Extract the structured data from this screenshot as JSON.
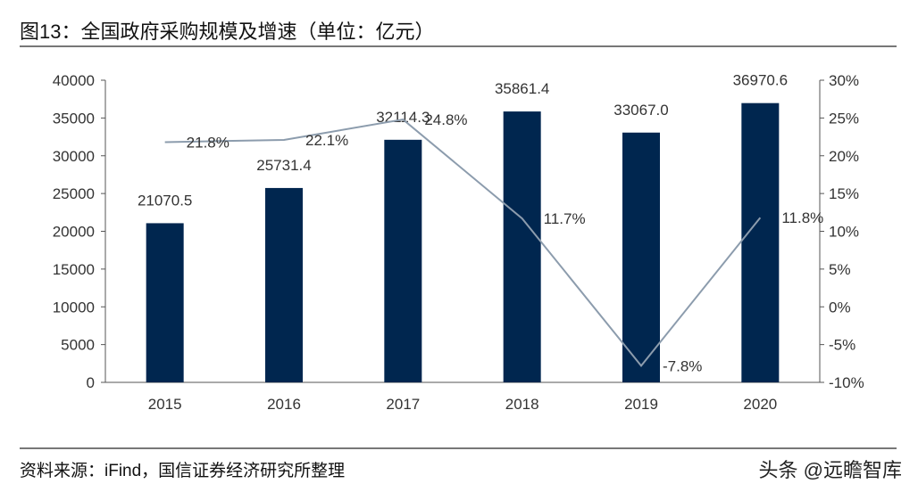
{
  "title": "图13：全国政府采购规模及增速（单位：亿元）",
  "source": "资料来源：iFind，国信证券经济研究所整理",
  "watermark": "头条 @远瞻智库",
  "chart_data": {
    "type": "bar+line",
    "categories": [
      "2015",
      "2016",
      "2017",
      "2018",
      "2019",
      "2020"
    ],
    "series": [
      {
        "type": "bar",
        "axis": "left",
        "color": "#00264f",
        "values": [
          21070.5,
          25731.4,
          32114.3,
          35861.4,
          33067.0,
          36970.6
        ],
        "labels": [
          "21070.5",
          "25731.4",
          "32114.3",
          "35861.4",
          "33067.0",
          "36970.6"
        ]
      },
      {
        "type": "line",
        "axis": "right",
        "color": "#8c9cad",
        "values": [
          21.8,
          22.1,
          24.8,
          11.7,
          -7.8,
          11.8
        ],
        "labels": [
          "21.8%",
          "22.1%",
          "24.8%",
          "11.7%",
          "-7.8%",
          "11.8%"
        ]
      }
    ],
    "yleft": {
      "range": [
        0,
        40000
      ],
      "ticks": [
        "0",
        "5000",
        "10000",
        "15000",
        "20000",
        "25000",
        "30000",
        "35000",
        "40000"
      ]
    },
    "yright": {
      "range": [
        -10,
        30
      ],
      "ticks": [
        "-10%",
        "-5%",
        "0%",
        "5%",
        "10%",
        "15%",
        "20%",
        "25%",
        "30%"
      ]
    },
    "grid": false,
    "legend": "none"
  }
}
